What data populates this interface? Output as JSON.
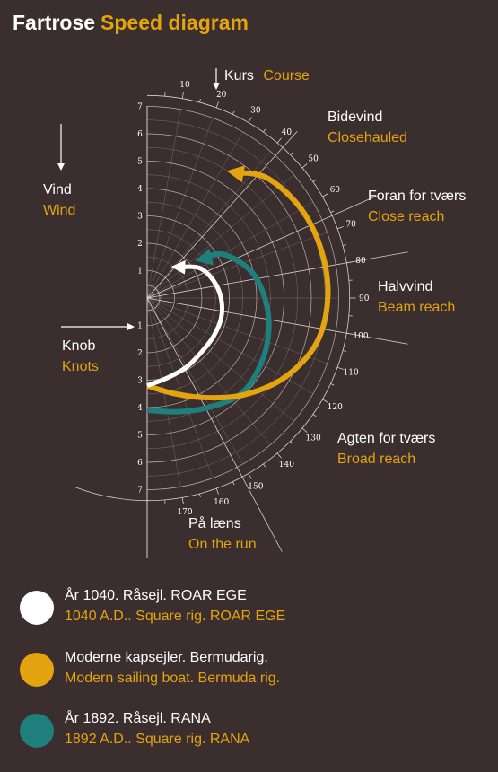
{
  "title": {
    "danish": "Fartrose",
    "english": "Speed diagram"
  },
  "colors": {
    "background": "#3a2e2e",
    "accent": "#e3a40f",
    "white": "#ffffff",
    "teal": "#1e7f7c",
    "grid": "#d8d0cc"
  },
  "labels": {
    "course": {
      "danish": "Kurs",
      "english": "Course"
    },
    "wind": {
      "danish": "Vind",
      "english": "Wind"
    },
    "knots": {
      "danish": "Knob",
      "english": "Knots"
    },
    "closehauled": {
      "danish": "Bidevind",
      "english": "Closehauled"
    },
    "close_reach": {
      "danish": "Foran for tværs",
      "english": "Close reach"
    },
    "beam_reach": {
      "danish": "Halvvind",
      "english": "Beam reach"
    },
    "broad_reach": {
      "danish": "Agten for tværs",
      "english": "Broad reach"
    },
    "run": {
      "danish": "På læns",
      "english": "On the run"
    }
  },
  "angle_ticks": [
    "10",
    "20",
    "30",
    "40",
    "50",
    "60",
    "70",
    "80",
    "90",
    "100",
    "110",
    "120",
    "130",
    "140",
    "150",
    "160",
    "170"
  ],
  "knot_ticks": [
    "1",
    "2",
    "3",
    "4",
    "5",
    "6",
    "7"
  ],
  "arrow_icons": [
    "down-arrow-icon",
    "right-arrow-icon"
  ],
  "chart_data": {
    "type": "polar-line",
    "angle_unit": "degrees off the wind",
    "radius_unit": "knots",
    "radius_max": 7,
    "series": [
      {
        "color": "#ffffff",
        "angles": [
          45,
          60,
          75,
          90,
          105,
          120,
          135,
          150,
          165,
          180
        ],
        "values": [
          1.6,
          2.2,
          2.5,
          2.7,
          2.8,
          2.8,
          2.8,
          2.9,
          3.0,
          3.2
        ]
      },
      {
        "color": "#e3a40f",
        "angles": [
          35,
          45,
          60,
          75,
          90,
          105,
          120,
          135,
          150,
          165,
          180
        ],
        "values": [
          5.6,
          6.2,
          6.5,
          6.6,
          6.6,
          6.4,
          5.8,
          5.0,
          4.2,
          3.6,
          3.2
        ]
      },
      {
        "color": "#1e7f7c",
        "angles": [
          55,
          60,
          75,
          90,
          105,
          120,
          135,
          150,
          165,
          180
        ],
        "values": [
          2.5,
          3.2,
          3.9,
          4.3,
          4.6,
          4.8,
          4.9,
          4.6,
          4.3,
          4.1
        ]
      }
    ]
  },
  "legend": [
    {
      "color": "#ffffff",
      "danish": "År 1040. Råsejl. ROAR EGE",
      "english": "1040 A.D.. Square rig. ROAR EGE"
    },
    {
      "color": "#e3a40f",
      "danish": "Moderne kapsejler. Bermudarig.",
      "english": "Modern sailing boat. Bermuda rig."
    },
    {
      "color": "#1e7f7c",
      "danish": "År 1892. Råsejl. RANA",
      "english": "1892 A.D.. Square rig. RANA"
    }
  ]
}
